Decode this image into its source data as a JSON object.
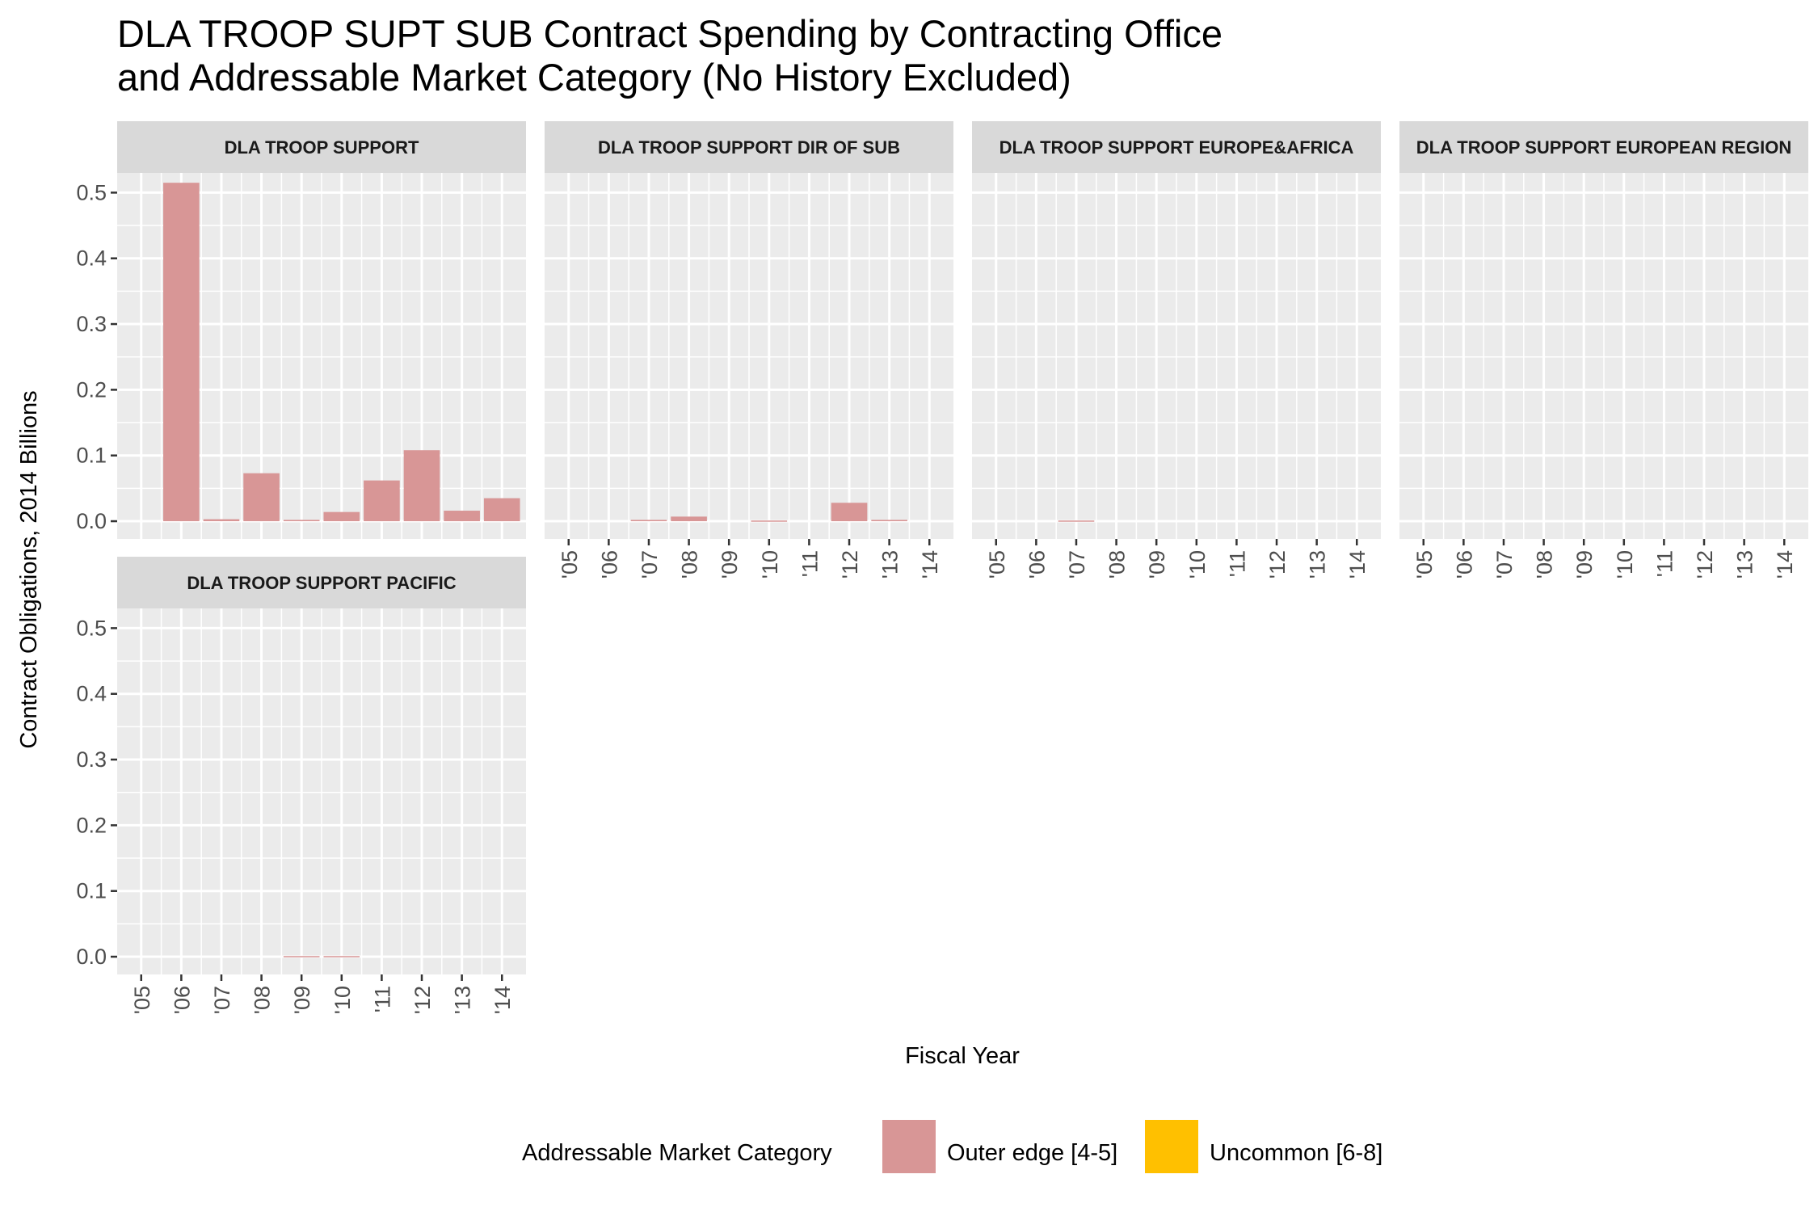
{
  "title": {
    "line1": "DLA TROOP SUPT SUB Contract Spending by Contracting Office",
    "line2": "and Addressable Market Category (No History Excluded)"
  },
  "legend": {
    "title": "Addressable Market Category",
    "items": [
      {
        "label": "Outer edge [4-5]",
        "color": "#d89696"
      },
      {
        "label": "Uncommon [6-8]",
        "color": "#ffc000"
      }
    ]
  },
  "chart_data": {
    "type": "bar",
    "xlabel": "Fiscal Year",
    "ylabel": "Contract Obligations, 2014 Billions",
    "ylim": [
      -0.027,
      0.53
    ],
    "y_ticks": [
      0.0,
      0.1,
      0.2,
      0.3,
      0.4,
      0.5
    ],
    "y_tick_labels": [
      "0.0",
      "0.1",
      "0.2",
      "0.3",
      "0.4",
      "0.5"
    ],
    "categories": [
      "'05",
      "'06",
      "'07",
      "'08",
      "'09",
      "'10",
      "'11",
      "'12",
      "'13",
      "'14"
    ],
    "grid": true,
    "legend_position": "bottom",
    "panels": [
      {
        "label": "DLA TROOP SUPPORT",
        "series": [
          {
            "name": "Outer edge [4-5]",
            "values": [
              0,
              0.515,
              0.003,
              0.073,
              0.002,
              0.014,
              0.062,
              0.108,
              0.016,
              0.035
            ]
          }
        ]
      },
      {
        "label": "DLA TROOP SUPPORT DIR OF SUB",
        "series": [
          {
            "name": "Outer edge [4-5]",
            "values": [
              0,
              0,
              0.002,
              0.007,
              0,
              0.001,
              0,
              0.028,
              0.002,
              0
            ]
          }
        ]
      },
      {
        "label": "DLA TROOP SUPPORT EUROPE&AFRICA",
        "series": [
          {
            "name": "Outer edge [4-5]",
            "values": [
              0,
              0,
              0.001,
              0,
              0,
              0,
              0,
              0,
              0,
              0
            ]
          }
        ]
      },
      {
        "label": "DLA TROOP SUPPORT EUROPEAN REGION",
        "series": [
          {
            "name": "Outer edge [4-5]",
            "values": [
              0,
              0,
              0,
              0,
              0,
              0,
              0,
              0,
              0,
              0
            ]
          }
        ]
      },
      {
        "label": "DLA TROOP SUPPORT PACIFIC",
        "series": [
          {
            "name": "Outer edge [4-5]",
            "values": [
              0,
              0,
              0,
              0,
              0.001,
              0.001,
              0,
              0,
              0,
              0
            ]
          }
        ]
      }
    ]
  }
}
